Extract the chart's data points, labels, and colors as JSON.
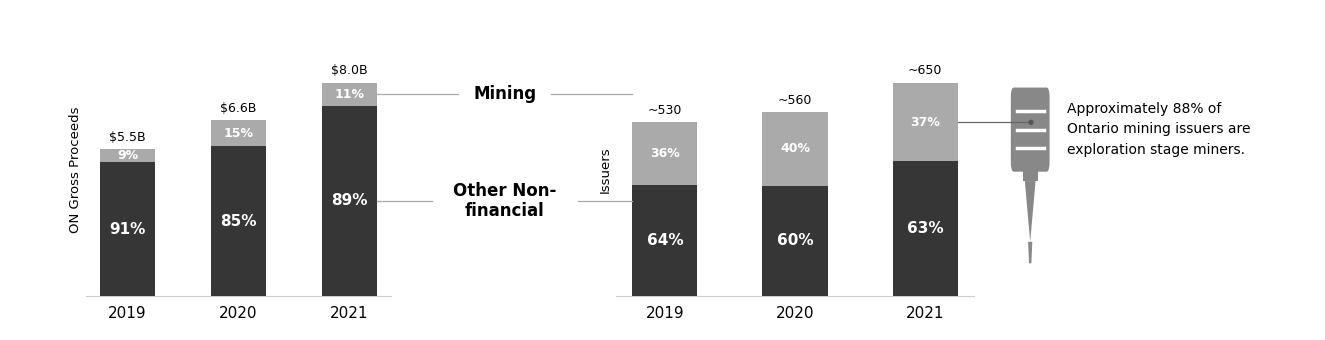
{
  "proceeds_years": [
    "2019",
    "2020",
    "2021"
  ],
  "proceeds_totals": [
    "$5.5B",
    "$6.6B",
    "$8.0B"
  ],
  "proceeds_values": [
    5.5,
    6.6,
    8.0
  ],
  "proceeds_other_pct": [
    91,
    85,
    89
  ],
  "proceeds_mining_pct": [
    9,
    15,
    11
  ],
  "proceeds_other_color": "#363636",
  "proceeds_mining_color": "#aaaaaa",
  "issuers_years": [
    "2019",
    "2020",
    "2021"
  ],
  "issuers_totals": [
    "~530",
    "~560",
    "~650"
  ],
  "issuers_values": [
    530,
    560,
    650
  ],
  "issuers_other_pct": [
    64,
    60,
    63
  ],
  "issuers_mining_pct": [
    36,
    40,
    37
  ],
  "issuers_other_color": "#363636",
  "issuers_mining_color": "#aaaaaa",
  "ylabel_proceeds": "ON Gross Proceeds",
  "ylabel_issuers": "Issuers",
  "label_mining": "Mining",
  "label_other": "Other Non-\nfinancial",
  "annotation_text": "Approximately 88% of\nOntario mining issuers are\nexploration stage miners.",
  "bg_color": "#ffffff",
  "bar_width": 0.5,
  "line_color": "#aaaaaa",
  "text_color": "#000000",
  "white": "#ffffff"
}
